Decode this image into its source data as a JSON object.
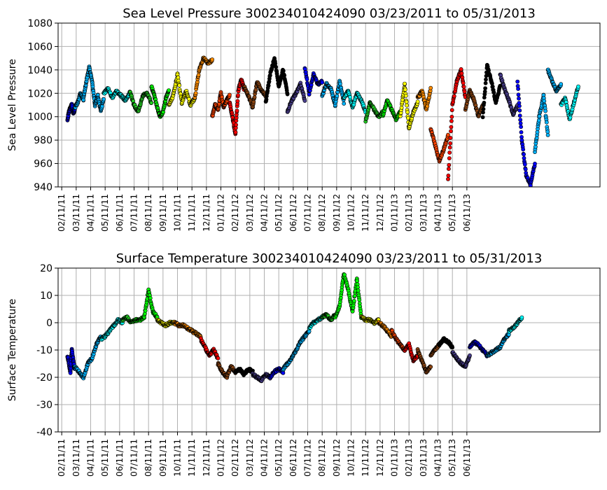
{
  "chart_data": [
    {
      "type": "scatter",
      "title": "Sea Level Pressure 300234010424090  03/23/2011 to 05/31/2013",
      "xlabel": "",
      "ylabel": "Sea Level Pressure",
      "ylim": [
        940,
        1080
      ],
      "yticks": [
        940,
        960,
        980,
        1000,
        1020,
        1040,
        1060,
        1080
      ],
      "xticks": [
        "02/11/11",
        "03/11/11",
        "04/11/11",
        "05/11/11",
        "06/11/11",
        "07/11/11",
        "08/11/11",
        "09/11/11",
        "10/11/11",
        "11/11/11",
        "12/11/11",
        "01/11/12",
        "02/11/12",
        "03/11/12",
        "04/11/12",
        "05/11/12",
        "06/11/12",
        "07/11/12",
        "08/11/12",
        "09/11/12",
        "10/11/12",
        "11/11/12",
        "12/11/12",
        "01/11/13",
        "02/11/13",
        "03/11/13",
        "04/11/13",
        "05/11/13",
        "06/11/13"
      ],
      "grid": true,
      "series": [
        {
          "color": "#0000ff",
          "x": [
            1.4,
            1.5,
            1.6,
            1.7,
            1.8,
            1.9
          ],
          "y": [
            998,
            1004,
            1008,
            1010,
            1003,
            1006
          ]
        },
        {
          "color": "#00b4ff",
          "x": [
            1.9,
            2.1,
            2.3,
            2.5,
            2.7,
            2.9,
            3.1,
            3.3,
            3.5,
            3.7,
            3.9
          ],
          "y": [
            1008,
            1012,
            1020,
            1015,
            1030,
            1042,
            1030,
            1010,
            1018,
            1005,
            1015
          ]
        },
        {
          "color": "#00ffff",
          "x": [
            3.9,
            4.2,
            4.5,
            4.8,
            5.1,
            5.4,
            5.7
          ],
          "y": [
            1020,
            1024,
            1016,
            1022,
            1018,
            1014,
            1020
          ]
        },
        {
          "color": "#22cc22",
          "x": [
            5.7,
            6.0,
            6.3,
            6.6,
            6.9,
            7.2
          ],
          "y": [
            1022,
            1010,
            1004,
            1018,
            1020,
            1012
          ]
        },
        {
          "color": "#00ff00",
          "x": [
            7.2,
            7.4,
            7.6,
            7.8,
            8.0,
            8.2,
            8.4
          ],
          "y": [
            1026,
            1018,
            1008,
            1000,
            1004,
            1016,
            1022
          ]
        },
        {
          "color": "#ffff00",
          "x": [
            8.4,
            8.7,
            9.0,
            9.3,
            9.6,
            9.9,
            10.2
          ],
          "y": [
            1010,
            1018,
            1036,
            1012,
            1022,
            1010,
            1016
          ]
        },
        {
          "color": "#ff8c00",
          "x": [
            10.2,
            10.5,
            10.8,
            11.1,
            11.4
          ],
          "y": [
            1016,
            1040,
            1050,
            1046,
            1048
          ]
        },
        {
          "color": "#ff4500",
          "x": [
            11.4,
            11.6,
            11.8,
            12.0,
            12.2,
            12.4,
            12.6
          ],
          "y": [
            1000,
            1010,
            1006,
            1020,
            1008,
            1014,
            1018
          ]
        },
        {
          "color": "#ff0000",
          "x": [
            12.6,
            12.8,
            13.0,
            13.2,
            13.4,
            13.6
          ],
          "y": [
            1012,
            1000,
            985,
            1022,
            1032,
            1024
          ]
        },
        {
          "color": "#8b4513",
          "x": [
            13.6,
            13.9,
            14.2,
            14.5,
            14.8,
            15.1
          ],
          "y": [
            1026,
            1018,
            1008,
            1030,
            1022,
            1018
          ]
        },
        {
          "color": "#000000",
          "x": [
            15.1,
            15.4,
            15.7,
            16.0,
            16.3,
            16.6
          ],
          "y": [
            1012,
            1036,
            1050,
            1026,
            1040,
            1020
          ]
        },
        {
          "color": "#483d8b",
          "x": [
            16.6,
            16.9,
            17.2,
            17.5,
            17.8
          ],
          "y": [
            1004,
            1014,
            1020,
            1028,
            1014
          ]
        },
        {
          "color": "#0000ff",
          "x": [
            17.8,
            18.1,
            18.4,
            18.7,
            19.0
          ],
          "y": [
            1042,
            1020,
            1036,
            1028,
            1030
          ]
        },
        {
          "color": "#00b4ff",
          "x": [
            19.0,
            19.3,
            19.6,
            19.9,
            20.2,
            20.5
          ],
          "y": [
            1018,
            1028,
            1024,
            1010,
            1030,
            1012
          ]
        },
        {
          "color": "#00ffff",
          "x": [
            20.5,
            20.8,
            21.1,
            21.4,
            21.7,
            22.0
          ],
          "y": [
            1016,
            1022,
            1008,
            1020,
            1014,
            1004
          ]
        },
        {
          "color": "#22cc22",
          "x": [
            22.0,
            22.3,
            22.6,
            22.9,
            23.2
          ],
          "y": [
            996,
            1012,
            1006,
            1000,
            1004
          ]
        },
        {
          "color": "#00ff00",
          "x": [
            23.2,
            23.5,
            23.8,
            24.1,
            24.4
          ],
          "y": [
            1000,
            1014,
            1006,
            998,
            1004
          ]
        },
        {
          "color": "#ffff00",
          "x": [
            24.4,
            24.7,
            25.0,
            25.3,
            25.6
          ],
          "y": [
            1000,
            1028,
            990,
            1004,
            1012
          ]
        },
        {
          "color": "#ff8c00",
          "x": [
            25.6,
            25.9,
            26.2,
            26.5
          ],
          "y": [
            1016,
            1022,
            1006,
            1024
          ]
        },
        {
          "color": "#ff4500",
          "x": [
            26.5,
            26.8,
            27.1,
            27.4,
            27.7
          ],
          "y": [
            990,
            976,
            962,
            972,
            984
          ]
        },
        {
          "color": "#ff0000",
          "x": [
            27.7,
            28.0,
            28.3,
            28.6,
            28.9
          ],
          "y": [
            946,
            1010,
            1030,
            1040,
            1016
          ]
        },
        {
          "color": "#8b4513",
          "x": [
            28.9,
            29.2,
            29.5,
            29.8,
            30.1
          ],
          "y": [
            1006,
            1022,
            1014,
            1000,
            1010
          ]
        },
        {
          "color": "#000000",
          "x": [
            30.1,
            30.4,
            30.7,
            31.0,
            31.3
          ],
          "y": [
            1000,
            1044,
            1030,
            1012,
            1026
          ]
        },
        {
          "color": "#483d8b",
          "x": [
            31.3,
            31.6,
            31.9,
            32.2,
            32.5
          ],
          "y": [
            1036,
            1024,
            1014,
            1002,
            1010
          ]
        },
        {
          "color": "#0000ff",
          "x": [
            32.5,
            32.8,
            33.1,
            33.4,
            33.7
          ],
          "y": [
            1030,
            980,
            950,
            942,
            960
          ]
        },
        {
          "color": "#00b4ff",
          "x": [
            33.7,
            34.0,
            34.3,
            34.6
          ],
          "y": [
            970,
            1000,
            1018,
            985
          ]
        },
        {
          "color": "#00b4ff",
          "x": [
            34.6,
            34.9,
            35.2,
            35.5
          ],
          "y": [
            1040,
            1030,
            1022,
            1028
          ]
        },
        {
          "color": "#00ffff",
          "x": [
            35.5,
            35.8,
            36.1,
            36.4,
            36.7
          ],
          "y": [
            1010,
            1016,
            998,
            1012,
            1026
          ]
        }
      ]
    },
    {
      "type": "scatter",
      "title": "Surface Temperature 300234010424090  03/23/2011 to 05/31/2013",
      "xlabel": "",
      "ylabel": "Surface Temperature",
      "ylim": [
        -40,
        20
      ],
      "yticks": [
        -40,
        -30,
        -20,
        -10,
        0,
        10,
        20
      ],
      "xticks": [
        "02/11/11",
        "03/11/11",
        "04/11/11",
        "05/11/11",
        "06/11/11",
        "07/11/11",
        "08/11/11",
        "09/11/11",
        "10/11/11",
        "11/11/11",
        "12/11/11",
        "01/11/12",
        "02/11/12",
        "03/11/12",
        "04/11/12",
        "05/11/12",
        "06/11/12",
        "07/11/12",
        "08/11/12",
        "09/11/12",
        "10/11/12",
        "11/11/12",
        "12/11/12",
        "01/11/13",
        "02/11/13",
        "03/11/13",
        "04/11/13",
        "05/11/13",
        "06/11/13"
      ],
      "grid": true,
      "series": [
        {
          "color": "#0000ff",
          "x": [
            1.4,
            1.5,
            1.6,
            1.7,
            1.8,
            1.9
          ],
          "y": [
            -12,
            -15,
            -18,
            -10,
            -14,
            -17
          ]
        },
        {
          "color": "#00b4ff",
          "x": [
            1.9,
            2.2,
            2.5,
            2.8,
            3.1,
            3.4,
            3.7
          ],
          "y": [
            -16,
            -18,
            -20,
            -15,
            -13,
            -8,
            -5
          ]
        },
        {
          "color": "#00ffff",
          "x": [
            3.7,
            4.0,
            4.3,
            4.6,
            4.9,
            5.2
          ],
          "y": [
            -6,
            -5,
            -3,
            -1,
            1,
            0
          ]
        },
        {
          "color": "#22cc22",
          "x": [
            5.2,
            5.5,
            5.8,
            6.1
          ],
          "y": [
            1,
            2,
            0,
            1
          ]
        },
        {
          "color": "#00ff00",
          "x": [
            6.1,
            6.4,
            6.7,
            7.0,
            7.3,
            7.6
          ],
          "y": [
            1,
            1,
            2,
            12,
            4,
            2
          ]
        },
        {
          "color": "#ffff00",
          "x": [
            7.6,
            7.9,
            8.2,
            8.5,
            8.8
          ],
          "y": [
            1,
            0,
            -1,
            0,
            0
          ]
        },
        {
          "color": "#ff8c00",
          "x": [
            8.8,
            9.1,
            9.4,
            9.7,
            10.0,
            10.3,
            10.6
          ],
          "y": [
            0,
            -1,
            -1,
            -2,
            -3,
            -4,
            -5
          ]
        },
        {
          "color": "#ff0000",
          "x": [
            10.6,
            10.9,
            11.2,
            11.5,
            11.8
          ],
          "y": [
            -6,
            -9,
            -12,
            -10,
            -13
          ]
        },
        {
          "color": "#8b4513",
          "x": [
            11.8,
            12.1,
            12.4,
            12.7,
            13.0
          ],
          "y": [
            -15,
            -18,
            -20,
            -16,
            -18
          ]
        },
        {
          "color": "#000000",
          "x": [
            13.0,
            13.3,
            13.6,
            13.9,
            14.2
          ],
          "y": [
            -18,
            -17,
            -19,
            -17,
            -18
          ]
        },
        {
          "color": "#483d8b",
          "x": [
            14.2,
            14.5,
            14.8,
            15.1,
            15.4
          ],
          "y": [
            -19,
            -20,
            -21,
            -19,
            -20
          ]
        },
        {
          "color": "#0000ff",
          "x": [
            15.4,
            15.7,
            16.0,
            16.3
          ],
          "y": [
            -20,
            -18,
            -17,
            -18
          ]
        },
        {
          "color": "#00b4ff",
          "x": [
            16.3,
            16.6,
            16.9,
            17.2,
            17.5,
            17.8,
            18.1
          ],
          "y": [
            -17,
            -15,
            -13,
            -10,
            -7,
            -5,
            -3
          ]
        },
        {
          "color": "#00ffff",
          "x": [
            18.1,
            18.4,
            18.7,
            19.0
          ],
          "y": [
            -2,
            0,
            1,
            2
          ]
        },
        {
          "color": "#22cc22",
          "x": [
            19.0,
            19.3,
            19.6,
            19.9
          ],
          "y": [
            2,
            3,
            1,
            3
          ]
        },
        {
          "color": "#00ff00",
          "x": [
            19.9,
            20.2,
            20.5,
            20.8,
            21.1,
            21.4,
            21.7
          ],
          "y": [
            2,
            6,
            18,
            12,
            4,
            16,
            2
          ]
        },
        {
          "color": "#ffff00",
          "x": [
            21.7,
            22.0,
            22.3,
            22.6,
            22.9
          ],
          "y": [
            2,
            1,
            1,
            0,
            1
          ]
        },
        {
          "color": "#ff8c00",
          "x": [
            22.9,
            23.2,
            23.5,
            23.8
          ],
          "y": [
            0,
            -1,
            -3,
            -5
          ]
        },
        {
          "color": "#ff4500",
          "x": [
            23.8,
            24.1,
            24.4,
            24.7
          ],
          "y": [
            -3,
            -6,
            -8,
            -10
          ]
        },
        {
          "color": "#ff0000",
          "x": [
            24.7,
            25.0,
            25.3,
            25.6
          ],
          "y": [
            -10,
            -8,
            -14,
            -12
          ]
        },
        {
          "color": "#8b4513",
          "x": [
            25.6,
            25.9,
            26.2,
            26.5
          ],
          "y": [
            -10,
            -14,
            -18,
            -16
          ]
        },
        {
          "color": "#8b4513",
          "x": [
            26.5,
            26.8,
            27.1
          ],
          "y": [
            -12,
            -10,
            -8
          ]
        },
        {
          "color": "#000000",
          "x": [
            27.1,
            27.4,
            27.7,
            28.0
          ],
          "y": [
            -8,
            -6,
            -7,
            -9
          ]
        },
        {
          "color": "#483d8b",
          "x": [
            28.0,
            28.3,
            28.6,
            28.9,
            29.2
          ],
          "y": [
            -11,
            -13,
            -15,
            -16,
            -12
          ]
        },
        {
          "color": "#0000ff",
          "x": [
            29.2,
            29.5,
            29.8,
            30.1,
            30.4
          ],
          "y": [
            -9,
            -7,
            -8,
            -10,
            -12
          ]
        },
        {
          "color": "#00b4ff",
          "x": [
            30.4,
            30.7,
            31.0,
            31.3,
            31.6,
            31.9
          ],
          "y": [
            -12,
            -11,
            -10,
            -9,
            -6,
            -4
          ]
        },
        {
          "color": "#00ffff",
          "x": [
            31.9,
            32.2,
            32.5,
            32.8
          ],
          "y": [
            -3,
            -2,
            0,
            2
          ]
        }
      ]
    }
  ]
}
